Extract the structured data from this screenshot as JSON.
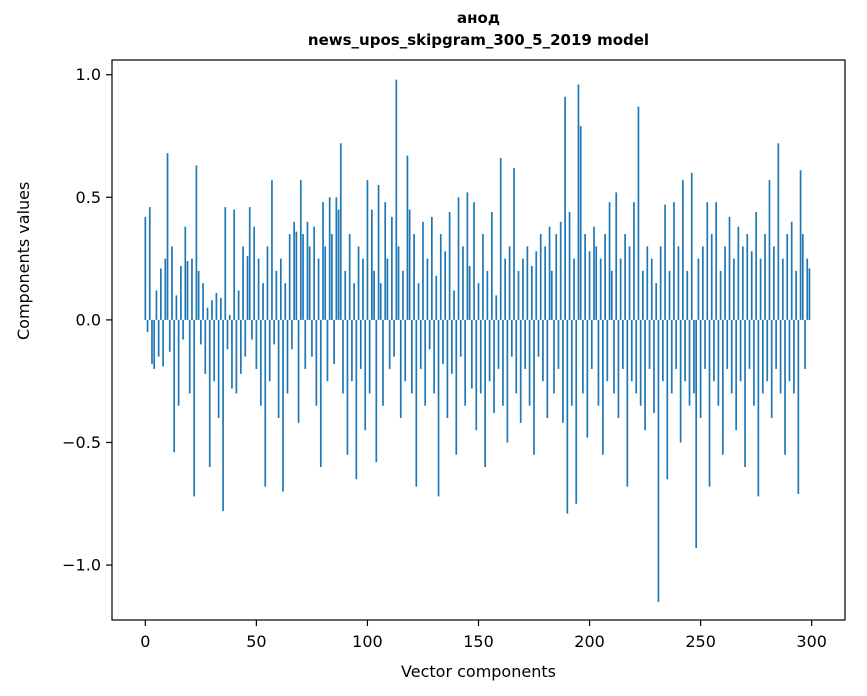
{
  "figure": {
    "title_line1": "анод",
    "title_line2": "news_upos_skipgram_300_5_2019 model",
    "xlabel": "Vector components",
    "ylabel": "Components values"
  },
  "chart_data": {
    "type": "bar",
    "title": "анод",
    "subtitle": "news_upos_skipgram_300_5_2019 model",
    "xlabel": "Vector components",
    "ylabel": "Components values",
    "bar_color": "#1f77b4",
    "axis_color": "#000000",
    "grid": false,
    "legend": "none",
    "xlim": [
      -15,
      315
    ],
    "ylim": [
      -1.224,
      1.06
    ],
    "xticks": [
      {
        "v": 0,
        "label": "0"
      },
      {
        "v": 50,
        "label": "50"
      },
      {
        "v": 100,
        "label": "100"
      },
      {
        "v": 150,
        "label": "150"
      },
      {
        "v": 200,
        "label": "200"
      },
      {
        "v": 250,
        "label": "250"
      },
      {
        "v": 300,
        "label": "300"
      }
    ],
    "yticks": [
      {
        "v": 1.0,
        "label": "1.0"
      },
      {
        "v": 0.5,
        "label": "0.5"
      },
      {
        "v": 0.0,
        "label": "0.0"
      },
      {
        "v": -0.5,
        "label": "−0.5"
      },
      {
        "v": -1.0,
        "label": "−1.0"
      }
    ],
    "values": [
      0.42,
      -0.05,
      0.46,
      -0.18,
      -0.2,
      0.12,
      -0.15,
      0.21,
      -0.19,
      0.25,
      0.68,
      -0.13,
      0.3,
      -0.54,
      0.1,
      -0.35,
      0.22,
      -0.08,
      0.38,
      0.24,
      -0.3,
      0.25,
      -0.72,
      0.63,
      0.2,
      -0.1,
      0.15,
      -0.22,
      0.05,
      -0.6,
      0.08,
      -0.25,
      0.11,
      -0.4,
      0.09,
      -0.78,
      0.46,
      -0.12,
      0.02,
      -0.28,
      0.45,
      -0.3,
      0.12,
      -0.22,
      0.3,
      -0.15,
      0.26,
      0.46,
      -0.08,
      0.38,
      -0.2,
      0.25,
      -0.35,
      0.15,
      -0.68,
      0.3,
      -0.25,
      0.57,
      -0.1,
      0.2,
      -0.4,
      0.25,
      -0.7,
      0.15,
      -0.3,
      0.35,
      -0.12,
      0.4,
      0.36,
      -0.42,
      0.57,
      0.35,
      -0.2,
      0.4,
      0.3,
      -0.15,
      0.38,
      -0.35,
      0.25,
      -0.6,
      0.48,
      0.3,
      -0.25,
      0.5,
      0.35,
      -0.18,
      0.5,
      0.45,
      0.72,
      -0.3,
      0.2,
      -0.55,
      0.35,
      -0.25,
      0.15,
      -0.65,
      0.3,
      -0.2,
      0.25,
      -0.45,
      0.57,
      -0.3,
      0.45,
      0.2,
      -0.58,
      0.55,
      0.15,
      -0.35,
      0.48,
      0.25,
      -0.2,
      0.42,
      -0.15,
      0.98,
      0.3,
      -0.4,
      0.2,
      -0.25,
      0.67,
      0.45,
      -0.3,
      0.35,
      -0.68,
      0.15,
      -0.2,
      0.4,
      -0.35,
      0.25,
      -0.12,
      0.42,
      -0.3,
      0.18,
      -0.72,
      0.35,
      -0.18,
      0.28,
      -0.4,
      0.44,
      -0.22,
      0.12,
      -0.55,
      0.5,
      -0.15,
      0.3,
      -0.35,
      0.52,
      0.22,
      -0.28,
      0.48,
      -0.45,
      0.15,
      -0.3,
      0.35,
      -0.6,
      0.2,
      -0.25,
      0.44,
      -0.38,
      0.1,
      -0.2,
      0.66,
      -0.35,
      0.25,
      -0.5,
      0.3,
      -0.15,
      0.62,
      -0.3,
      0.2,
      -0.42,
      0.25,
      -0.2,
      0.3,
      -0.35,
      0.22,
      -0.55,
      0.28,
      -0.15,
      0.35,
      -0.25,
      0.3,
      -0.4,
      0.38,
      0.2,
      -0.3,
      0.35,
      -0.2,
      0.4,
      -0.42,
      0.91,
      -0.79,
      0.44,
      -0.35,
      0.25,
      -0.75,
      0.96,
      0.79,
      -0.3,
      0.35,
      -0.48,
      0.28,
      -0.2,
      0.38,
      0.3,
      -0.35,
      0.25,
      -0.55,
      0.35,
      -0.25,
      0.48,
      0.2,
      -0.3,
      0.52,
      -0.4,
      0.25,
      -0.2,
      0.35,
      -0.68,
      0.3,
      -0.25,
      0.48,
      -0.3,
      0.87,
      -0.35,
      0.2,
      -0.45,
      0.3,
      -0.2,
      0.25,
      -0.38,
      0.15,
      -1.15,
      0.3,
      -0.25,
      0.47,
      -0.65,
      0.2,
      -0.3,
      0.48,
      -0.2,
      0.3,
      -0.5,
      0.57,
      -0.25,
      0.2,
      -0.35,
      0.6,
      -0.3,
      -0.93,
      0.25,
      -0.4,
      0.3,
      -0.2,
      0.48,
      -0.68,
      0.35,
      -0.25,
      0.48,
      -0.35,
      0.2,
      -0.55,
      0.3,
      -0.2,
      0.42,
      -0.3,
      0.25,
      -0.45,
      0.38,
      -0.25,
      0.3,
      -0.6,
      0.35,
      -0.2,
      0.28,
      -0.35,
      0.44,
      -0.72,
      0.25,
      -0.3,
      0.35,
      -0.25,
      0.57,
      -0.4,
      0.3,
      -0.2,
      0.72,
      -0.3,
      0.25,
      -0.55,
      0.35,
      -0.25,
      0.4,
      -0.3,
      0.2,
      -0.71,
      0.61,
      0.35,
      -0.2,
      0.25,
      0.21
    ]
  }
}
